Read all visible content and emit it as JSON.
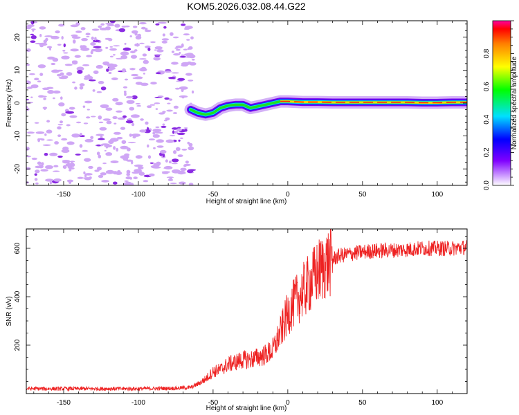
{
  "chart_data": [
    {
      "type": "heatmap",
      "title": "KOM5.2026.032.08.44.G22",
      "xlabel": "Height of straight line (km)",
      "ylabel": "Frequency (Hz)",
      "xlim": [
        -175,
        120
      ],
      "ylim": [
        -25,
        25
      ],
      "xticks": [
        "-150",
        "-100",
        "-50",
        "0",
        "50",
        "100"
      ],
      "yticks": [
        "20",
        "10",
        "0",
        "-10",
        "-20"
      ],
      "description_series": {
        "name": "Doppler frequency trace",
        "x": [
          -65,
          -60,
          -55,
          -50,
          -45,
          -40,
          -35,
          -30,
          -25,
          -20,
          -15,
          -10,
          -5,
          0,
          10,
          20,
          30,
          40,
          50,
          60,
          70,
          80,
          90,
          100,
          110,
          120
        ],
        "y": [
          -2,
          -3,
          -3.5,
          -3,
          -1.5,
          -0.8,
          -0.5,
          -0.5,
          -1.5,
          -1,
          -0.5,
          0,
          0.5,
          0.5,
          0.3,
          0.3,
          0.2,
          0.2,
          0.2,
          0.2,
          0.2,
          0.2,
          0.1,
          0.1,
          0.2,
          0.2
        ]
      },
      "colorbar": {
        "label": "Normalized spectral amplitude",
        "ticks": [
          "0.0",
          "0.2",
          "0.4",
          "0.6",
          "0.8"
        ],
        "range": [
          0,
          1
        ]
      }
    },
    {
      "type": "line",
      "xlabel": "Height of straight line (km)",
      "ylabel": "SNR (v/v)",
      "xlim": [
        -175,
        120
      ],
      "ylim": [
        0,
        680
      ],
      "xticks": [
        "-150",
        "-100",
        "-50",
        "0",
        "50",
        "100"
      ],
      "yticks": [
        "600",
        "400",
        "200"
      ],
      "color": "#ee2222",
      "series": [
        {
          "name": "SNR",
          "x": [
            -175,
            -150,
            -125,
            -100,
            -75,
            -65,
            -60,
            -55,
            -50,
            -45,
            -40,
            -35,
            -30,
            -25,
            -20,
            -15,
            -10,
            -5,
            0,
            5,
            10,
            15,
            20,
            25,
            30,
            35,
            40,
            50,
            60,
            70,
            80,
            90,
            100,
            110,
            120
          ],
          "y": [
            20,
            20,
            20,
            20,
            22,
            25,
            40,
            60,
            90,
            100,
            120,
            130,
            140,
            140,
            150,
            160,
            180,
            250,
            330,
            380,
            420,
            460,
            500,
            530,
            555,
            570,
            575,
            585,
            590,
            592,
            595,
            600,
            600,
            600,
            605
          ]
        }
      ]
    }
  ]
}
